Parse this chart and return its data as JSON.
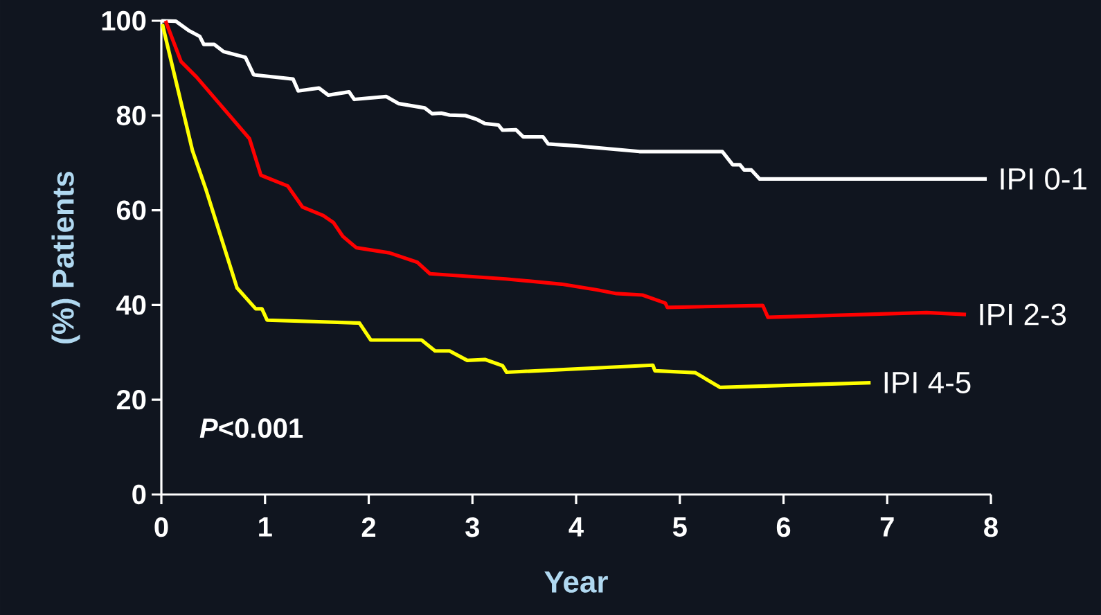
{
  "chart_data": {
    "type": "line",
    "xlabel": "Year",
    "ylabel": "(%) Patients",
    "xlim": [
      0,
      8
    ],
    "ylim": [
      0,
      100
    ],
    "xticks": [
      0,
      1,
      2,
      3,
      4,
      5,
      6,
      7,
      8
    ],
    "yticks": [
      0,
      20,
      40,
      60,
      80,
      100
    ],
    "annotations": [
      "*P*<0.001"
    ],
    "series": [
      {
        "name": "IPI 0-1",
        "color": "#ffffff",
        "x": [
          0,
          0.14,
          0.26,
          0.37,
          0.41,
          0.51,
          0.6,
          0.81,
          0.89,
          1.27,
          1.32,
          1.52,
          1.61,
          1.81,
          1.86,
          2.17,
          2.29,
          2.54,
          2.61,
          2.7,
          2.78,
          2.93,
          3.04,
          3.12,
          3.25,
          3.29,
          3.42,
          3.49,
          3.68,
          3.73,
          4.0,
          4.61,
          5.41,
          5.51,
          5.58,
          5.62,
          5.69,
          5.77,
          7.96
        ],
        "values": [
          100,
          99.9,
          98,
          96.7,
          95,
          95,
          93.5,
          92.3,
          88.6,
          87.7,
          85.2,
          85.8,
          84.3,
          85,
          83.4,
          84,
          82.5,
          81.6,
          80.4,
          80.5,
          80.1,
          80,
          79.2,
          78.3,
          78,
          76.9,
          77,
          75.5,
          75.5,
          74,
          73.6,
          72.4,
          72.4,
          69.6,
          69.6,
          68.5,
          68.5,
          66.6,
          66.6
        ]
      },
      {
        "name": "IPI 2-3",
        "color": "#ff0000",
        "x": [
          0.04,
          0.19,
          0.34,
          0.85,
          0.96,
          1.22,
          1.36,
          1.56,
          1.66,
          1.75,
          1.88,
          2.2,
          2.47,
          2.59,
          3.32,
          3.86,
          4.2,
          4.39,
          4.64,
          4.86,
          4.88,
          5.8,
          5.85,
          7.38,
          7.76
        ],
        "values": [
          100,
          91.4,
          88.1,
          75.1,
          67.4,
          65.1,
          60.7,
          58.9,
          57.4,
          54.5,
          52.1,
          51,
          49,
          46.6,
          45.5,
          44.4,
          43.2,
          42.4,
          42.1,
          40.4,
          39.5,
          39.9,
          37.4,
          38.4,
          38
        ]
      },
      {
        "name": "IPI 4-5",
        "color": "#ffff00",
        "x": [
          0.01,
          0.3,
          0.43,
          0.73,
          0.91,
          0.97,
          1.02,
          1.91,
          2.02,
          2.51,
          2.64,
          2.78,
          2.95,
          3.12,
          3.29,
          3.33,
          4.74,
          4.76,
          5.15,
          5.39,
          6.84
        ],
        "values": [
          99.3,
          72.6,
          64.4,
          43.6,
          39.2,
          39.2,
          36.8,
          36.2,
          32.6,
          32.6,
          30.3,
          30.3,
          28.3,
          28.5,
          27.2,
          25.8,
          27.3,
          26.1,
          25.7,
          22.6,
          23.6
        ]
      }
    ]
  }
}
